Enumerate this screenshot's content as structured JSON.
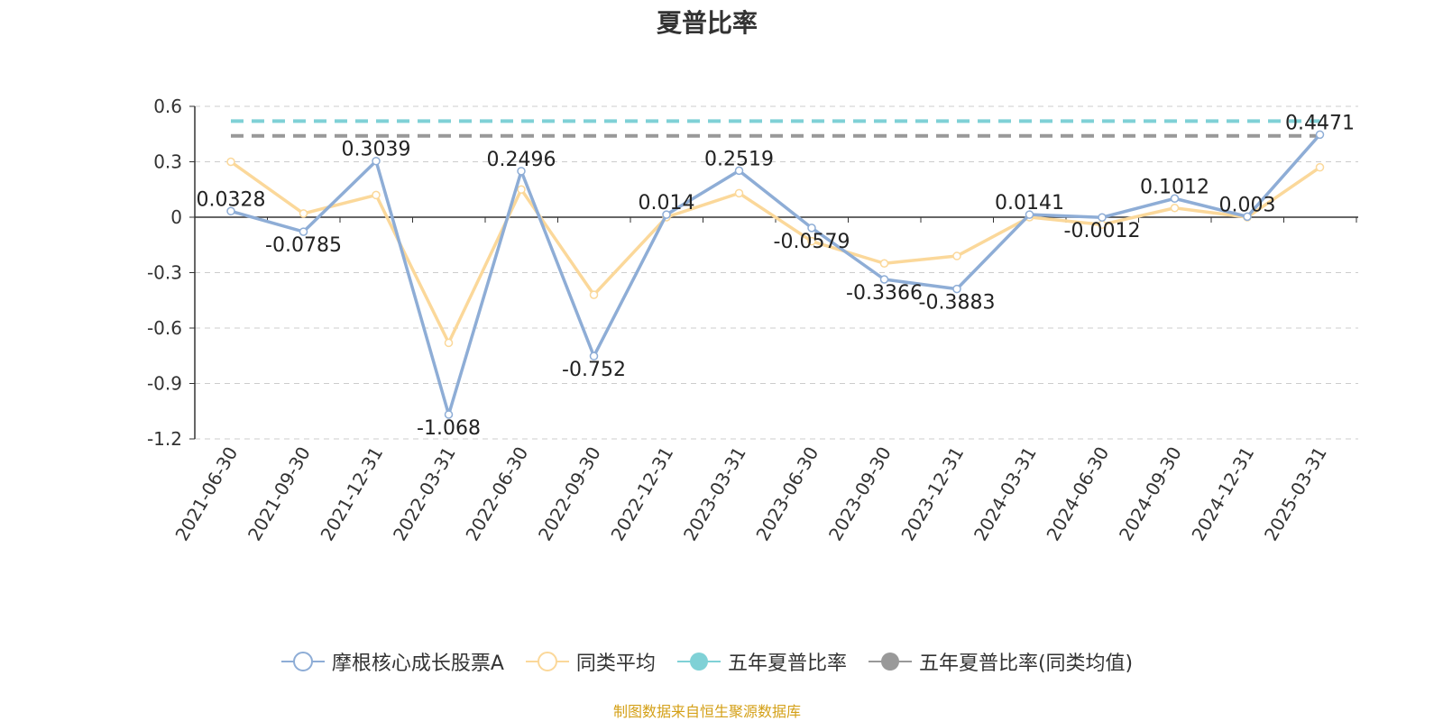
{
  "chart_data": {
    "type": "line",
    "title": "夏普比率",
    "categories": [
      "2021-06-30",
      "2021-09-30",
      "2021-12-31",
      "2022-03-31",
      "2022-06-30",
      "2022-09-30",
      "2022-12-31",
      "2023-03-31",
      "2023-06-30",
      "2023-09-30",
      "2023-12-31",
      "2024-03-31",
      "2024-06-30",
      "2024-09-30",
      "2024-12-31",
      "2025-03-31"
    ],
    "ylim": [
      -1.2,
      0.6
    ],
    "yticks": [
      0.6,
      0.3,
      0,
      -0.3,
      -0.6,
      -0.9,
      -1.2
    ],
    "ytick_labels": [
      "0.6",
      "0.3",
      "0",
      "-0.3",
      "-0.6",
      "-0.9",
      "-1.2"
    ],
    "grid": true,
    "legend_position": "bottom",
    "series": [
      {
        "name": "摩根核心成长股票A",
        "color": "#8eadd6",
        "values": [
          0.0328,
          -0.0785,
          0.3039,
          -1.068,
          0.2496,
          -0.752,
          0.014,
          0.2519,
          -0.0579,
          -0.3366,
          -0.3883,
          0.0141,
          -0.0012,
          0.1012,
          0.003,
          0.4471
        ],
        "labels": [
          "0.0328",
          "-0.0785",
          "0.3039",
          "-1.068",
          "0.2496",
          "-0.752",
          "0.014",
          "0.2519",
          "-0.0579",
          "-0.3366",
          "-0.3883",
          "0.0141",
          "-0.0012",
          "0.1012",
          "0.003",
          "0.4471"
        ]
      },
      {
        "name": "同类平均",
        "color": "#fbd89a",
        "values": [
          0.3,
          0.02,
          0.12,
          -0.68,
          0.15,
          -0.42,
          0.0,
          0.13,
          -0.13,
          -0.25,
          -0.21,
          0.0,
          -0.04,
          0.05,
          0.0,
          0.27
        ]
      },
      {
        "name": "五年夏普比率",
        "color": "#7fd1d6",
        "value": 0.52
      },
      {
        "name": "五年夏普比率(同类均值)",
        "color": "#999999",
        "value": 0.44
      }
    ],
    "source": "制图数据来自恒生聚源数据库"
  }
}
